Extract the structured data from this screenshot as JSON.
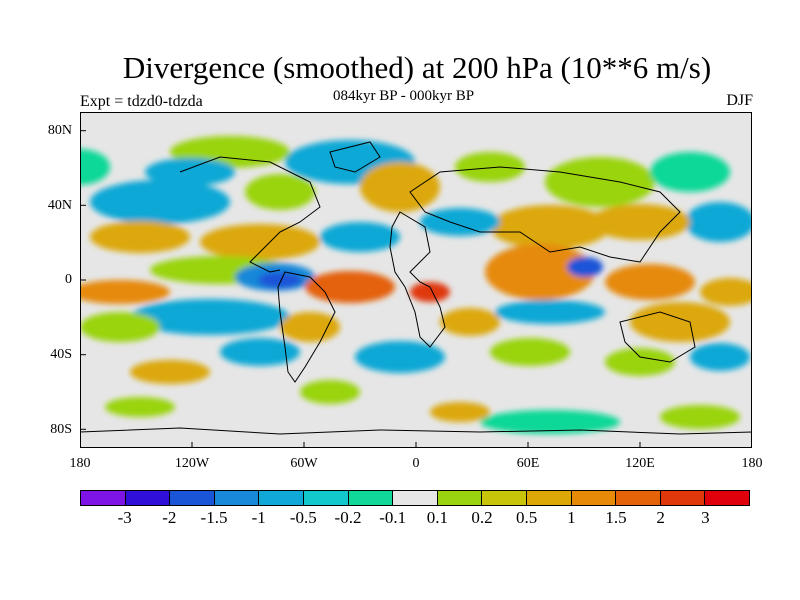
{
  "title": "Divergence (smoothed) at 200 hPa (10**6 m/s)",
  "subtitle": "084kyr BP - 000kyr BP",
  "experiment_label": "Expt = tdzd0-tdzda",
  "season": "DJF",
  "lat_ticks": [
    "80N",
    "40N",
    "0",
    "40S",
    "80S"
  ],
  "lon_ticks": [
    "180",
    "120W",
    "60W",
    "0",
    "60E",
    "120E",
    "180"
  ],
  "colorbar": {
    "colors": [
      "#7e14e6",
      "#3010d8",
      "#1a55d8",
      "#1888d8",
      "#10a8d6",
      "#12c8cc",
      "#10d898",
      "#e6e6e6",
      "#9ad410",
      "#c8c40a",
      "#dca808",
      "#e68a08",
      "#e46208",
      "#e0380a",
      "#e0000c"
    ],
    "labels": [
      "-3",
      "-2",
      "-1.5",
      "-1",
      "-0.5",
      "-0.2",
      "-0.1",
      "0.1",
      "0.2",
      "0.5",
      "1",
      "1.5",
      "2",
      "3"
    ]
  }
}
